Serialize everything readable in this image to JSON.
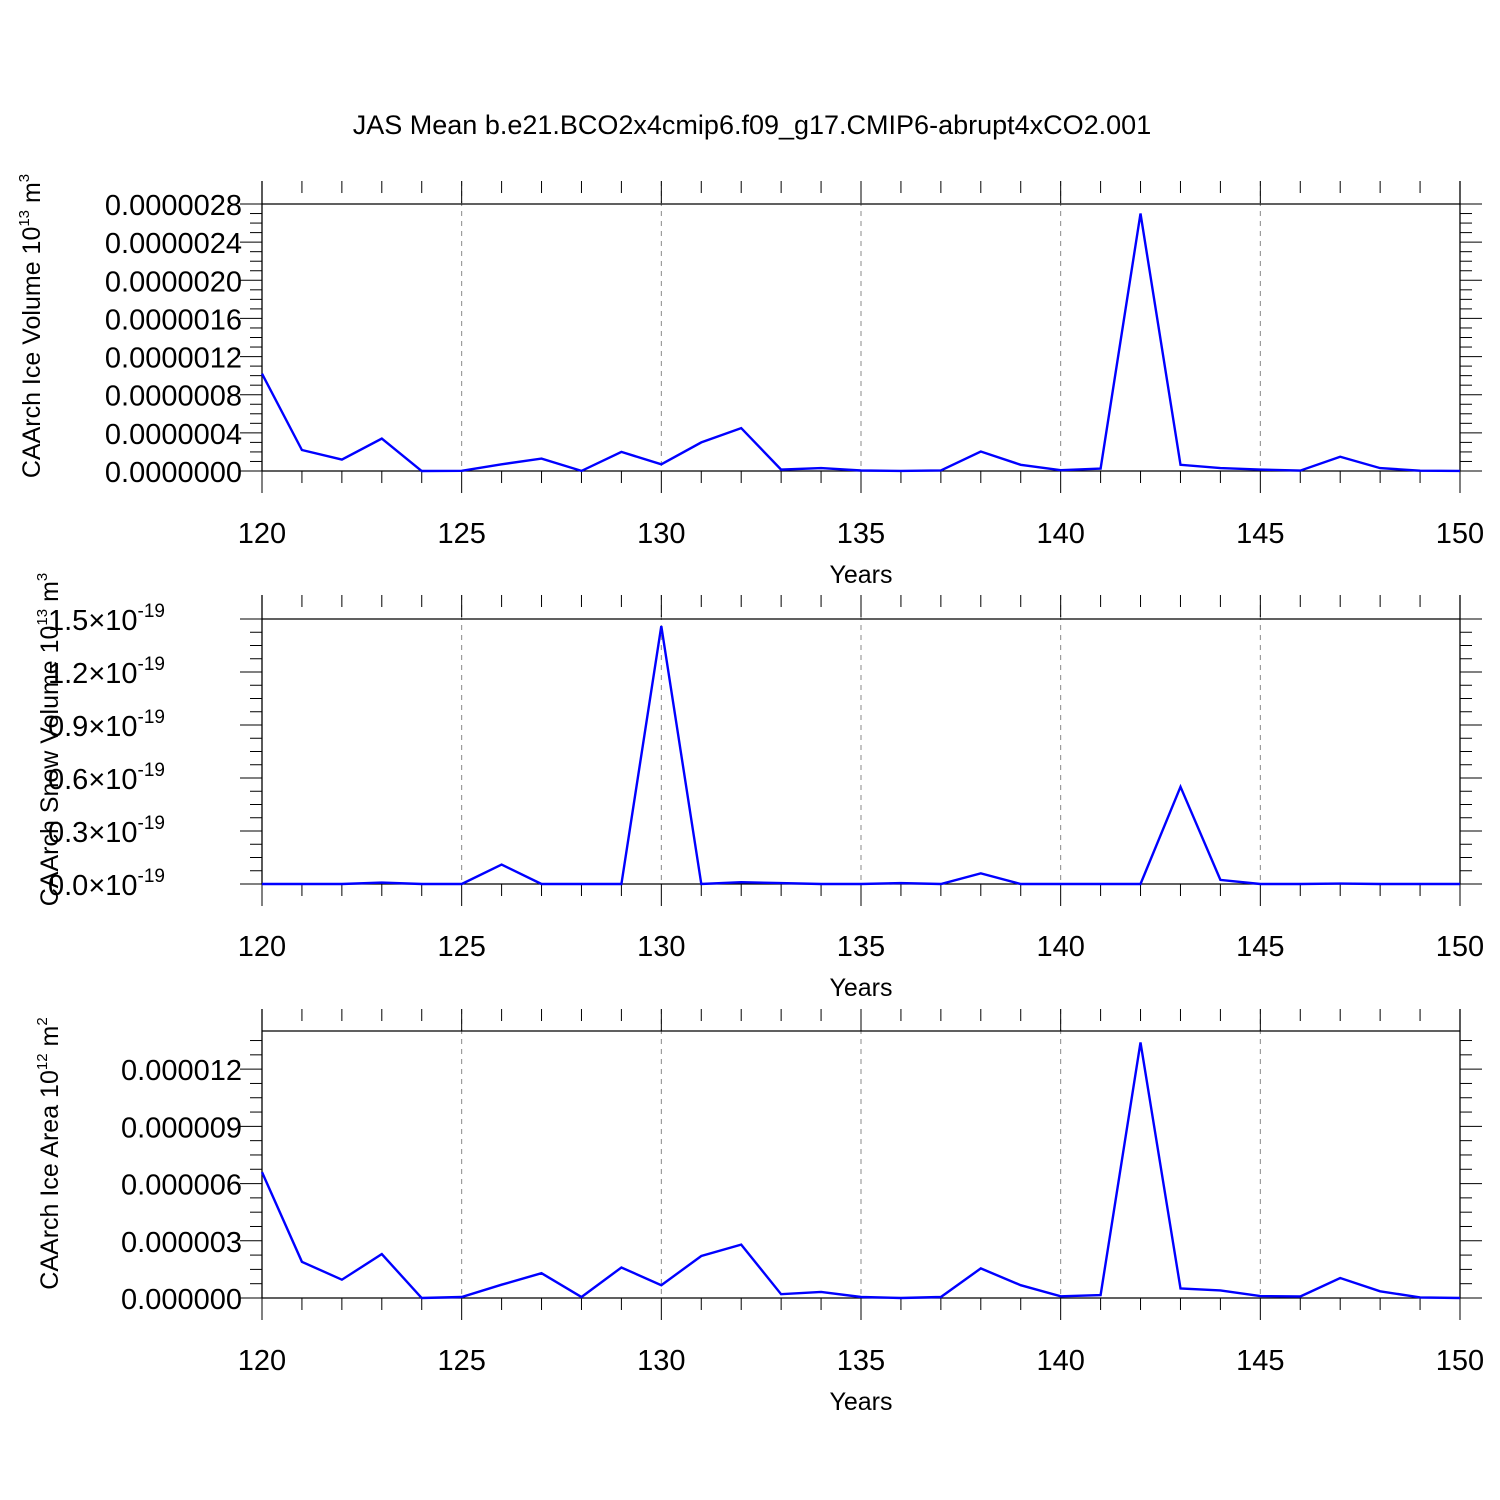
{
  "title": "JAS Mean b.e21.BCO2x4cmip6.f09_g17.CMIP6-abrupt4xCO2.001",
  "colors": {
    "series": "#0000ff",
    "axis": "#000000",
    "grid": "#888888"
  },
  "chart_data": [
    {
      "type": "line",
      "xlabel": "Years",
      "ylabel_main": "CAArch Ice Volume 10",
      "ylabel_exp": "13",
      "ylabel_unit": " m",
      "ylabel_unit_exp": "3",
      "xlim": [
        120,
        150
      ],
      "ylim": [
        0,
        2.8e-06
      ],
      "x_ticks": [
        "120",
        "125",
        "130",
        "135",
        "140",
        "145",
        "150"
      ],
      "y_ticks": [
        {
          "value": 0.0,
          "label": "0.0000000"
        },
        {
          "value": 4e-07,
          "label": "0.0000004"
        },
        {
          "value": 8e-07,
          "label": "0.0000008"
        },
        {
          "value": 1.2e-06,
          "label": "0.0000012"
        },
        {
          "value": 1.6e-06,
          "label": "0.0000016"
        },
        {
          "value": 2e-06,
          "label": "0.0000020"
        },
        {
          "value": 2.4e-06,
          "label": "0.0000024"
        },
        {
          "value": 2.8e-06,
          "label": "0.0000028"
        }
      ],
      "grid_x": [
        125,
        130,
        135,
        140,
        145
      ],
      "x": [
        120,
        121,
        122,
        123,
        124,
        125,
        126,
        127,
        128,
        129,
        130,
        131,
        132,
        133,
        134,
        135,
        136,
        137,
        138,
        139,
        140,
        141,
        142,
        143,
        144,
        145,
        146,
        147,
        148,
        149,
        150
      ],
      "values": [
        1.02e-06,
        2.2e-07,
        1.2e-07,
        3.4e-07,
        0,
        2e-09,
        7e-08,
        1.3e-07,
        1e-09,
        2e-07,
        7e-08,
        3e-07,
        4.5e-07,
        1.5e-08,
        3e-08,
        5e-09,
        1e-09,
        6e-09,
        2.05e-07,
        6.5e-08,
        8e-09,
        2.5e-08,
        2.7e-06,
        6.5e-08,
        3e-08,
        1.5e-08,
        4e-09,
        1.5e-07,
        3e-08,
        3e-09,
        1e-09
      ]
    },
    {
      "type": "line",
      "xlabel": "Years",
      "ylabel_main": "CAArch Snow Volume 10",
      "ylabel_exp": "13",
      "ylabel_unit": " m",
      "ylabel_unit_exp": "3",
      "xlim": [
        120,
        150
      ],
      "ylim": [
        0,
        1.5e-19
      ],
      "x_ticks": [
        "120",
        "125",
        "130",
        "135",
        "140",
        "145",
        "150"
      ],
      "y_ticks": [
        {
          "value": 0.0,
          "label": "0.0",
          "times": "×",
          "base": "10",
          "exp": "-19"
        },
        {
          "value": 3e-20,
          "label": "0.3",
          "times": "×",
          "base": "10",
          "exp": "-19"
        },
        {
          "value": 6e-20,
          "label": "0.6",
          "times": "×",
          "base": "10",
          "exp": "-19"
        },
        {
          "value": 9e-20,
          "label": "0.9",
          "times": "×",
          "base": "10",
          "exp": "-19"
        },
        {
          "value": 1.2e-19,
          "label": "1.2",
          "times": "×",
          "base": "10",
          "exp": "-19"
        },
        {
          "value": 1.5e-19,
          "label": "1.5",
          "times": "×",
          "base": "10",
          "exp": "-19"
        }
      ],
      "grid_x": [
        125,
        130,
        135,
        140,
        145
      ],
      "x": [
        120,
        121,
        122,
        123,
        124,
        125,
        126,
        127,
        128,
        129,
        130,
        131,
        132,
        133,
        134,
        135,
        136,
        137,
        138,
        139,
        140,
        141,
        142,
        143,
        144,
        145,
        146,
        147,
        148,
        149,
        150
      ],
      "values": [
        0,
        0,
        0,
        8e-22,
        0,
        0,
        1.1e-20,
        0,
        0,
        0,
        1.46e-19,
        0,
        1e-21,
        5e-22,
        0,
        0,
        5e-22,
        0,
        6e-21,
        0,
        0,
        0,
        0,
        5.5e-20,
        2.3e-21,
        0,
        0,
        2e-22,
        0,
        0,
        0
      ]
    },
    {
      "type": "line",
      "xlabel": "Years",
      "ylabel_main": "CAArch Ice Area 10",
      "ylabel_exp": "12",
      "ylabel_unit": " m",
      "ylabel_unit_exp": "2",
      "xlim": [
        120,
        150
      ],
      "ylim": [
        0,
        1.4e-05
      ],
      "x_ticks": [
        "120",
        "125",
        "130",
        "135",
        "140",
        "145",
        "150"
      ],
      "y_ticks": [
        {
          "value": 0.0,
          "label": "0.000000"
        },
        {
          "value": 3e-06,
          "label": "0.000003"
        },
        {
          "value": 6e-06,
          "label": "0.000006"
        },
        {
          "value": 9e-06,
          "label": "0.000009"
        },
        {
          "value": 1.2e-05,
          "label": "0.000012"
        }
      ],
      "grid_x": [
        125,
        130,
        135,
        140,
        145
      ],
      "x": [
        120,
        121,
        122,
        123,
        124,
        125,
        126,
        127,
        128,
        129,
        130,
        131,
        132,
        133,
        134,
        135,
        136,
        137,
        138,
        139,
        140,
        141,
        142,
        143,
        144,
        145,
        146,
        147,
        148,
        149,
        150
      ],
      "values": [
        6.6e-06,
        1.9e-06,
        9.6e-07,
        2.3e-06,
        0,
        5e-08,
        7e-07,
        1.3e-06,
        5e-08,
        1.6e-06,
        6.7e-07,
        2.2e-06,
        2.8e-06,
        2e-07,
        3.2e-07,
        5e-08,
        0,
        5e-08,
        1.55e-06,
        6.7e-07,
        9e-08,
        1.5e-07,
        1.34e-05,
        5e-07,
        4e-07,
        1e-07,
        8e-08,
        1.05e-06,
        3.5e-07,
        3e-08,
        0
      ]
    }
  ]
}
